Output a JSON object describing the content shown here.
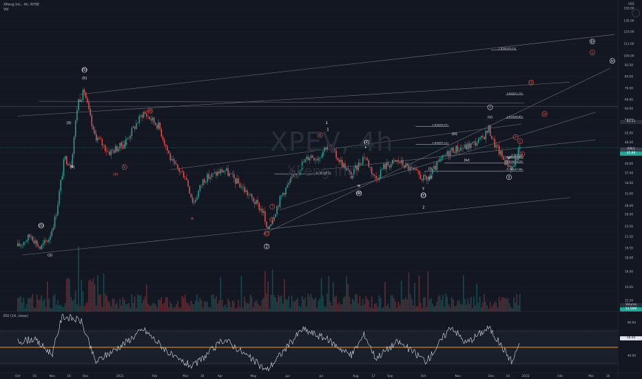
{
  "header": {
    "symbol_line": "XPeng Inc., 4h, NYSE",
    "volume_label": "Vol",
    "currency": "USD"
  },
  "watermark": {
    "symbol": "XPEV, 4h",
    "name": "XPeng Inc."
  },
  "rsi": {
    "label": "RSI (14, close)",
    "ticks": [
      "80.00",
      "60.00",
      "40.00"
    ],
    "last_value": "58.40",
    "upper_band": 70,
    "lower_band": 30,
    "mid_line": 50
  },
  "price_axis": {
    "ticks": [
      "150.00",
      "135.00",
      "123.00",
      "111.00",
      "100.00",
      "92.50",
      "84.00",
      "76.00",
      "69.00",
      "64.00",
      "58.00",
      "52.00",
      "48.00",
      "44.00",
      "40.00",
      "37.00",
      "34.00",
      "31.00",
      "28.00",
      "26.00",
      "23.50",
      "21.50",
      "19.50",
      "18.00",
      "16.00",
      "14.00",
      "12.50"
    ],
    "last_price": "45.88",
    "last_price_label": "XPEV",
    "level_tag": "65.11",
    "volume_tag": "Volume",
    "volume_value": "14.59M"
  },
  "time_axis": {
    "labels": [
      "Oct",
      "16",
      "Nov",
      "16",
      "Dec",
      "2021",
      "Feb",
      "Mar",
      "16",
      "Apr",
      "May",
      "Jun",
      "Jul",
      "Aug",
      "17",
      "Sep",
      "Oct",
      "Nov",
      "Dec",
      "16",
      "2022",
      "Feb",
      "Mar",
      "16"
    ]
  },
  "colors": {
    "up": "#26a69a",
    "down": "#ef5350",
    "wave": "#ffffff",
    "wave_red": "#f05a4a",
    "rsi_line": "#e0e3eb",
    "rsi_mid": "#ff9800",
    "channel": "#787b86"
  },
  "fib_labels": [
    "1.618(105.22)",
    "2.618(71.75)",
    "1.618(58.85)",
    "2.618(54.97)",
    "1.618(47.11)",
    "0.382(41.85)",
    "0.5(42.5)",
    "0.618(40.19)",
    "0.786(37.58)",
    "0.382(26.6)"
  ],
  "wave_labels": [
    "(1)",
    "(2)",
    "(3)",
    "(4)",
    "(5)",
    "1",
    "(5)",
    "2",
    "1",
    "(X)",
    "(W)",
    "(Y)",
    "2",
    "(i)",
    "(ii)",
    "(iii)",
    "(iv)",
    "(v)",
    "i",
    "ii",
    "iii",
    "iv",
    "v",
    "(A)",
    "(B)",
    "(C)",
    "A",
    "B",
    "C",
    "a",
    "b",
    "c",
    "w",
    "x",
    "y",
    "iii",
    "i",
    "ii",
    "iv",
    "v",
    "i"
  ],
  "chart_data": {
    "type": "candlestick",
    "title": "XPeng Inc., 4h, NYSE",
    "instrument": "XPEV",
    "timeframe": "4h",
    "xlabel": "",
    "ylabel": "USD",
    "ylim": [
      12.5,
      150
    ],
    "log_scale": true,
    "x": [
      "Oct 2020",
      "Nov 2020",
      "Dec 2020",
      "Jan 2021",
      "Feb 2021",
      "Mar 2021",
      "Apr 2021",
      "May 2021",
      "Jun 2021",
      "Jul 2021",
      "Aug 2021",
      "Sep 2021",
      "Oct 2021",
      "Nov 2021",
      "Dec 2021",
      "Jan 2022"
    ],
    "series": [
      {
        "name": "XPEV",
        "anchors": [
          {
            "t": "2020-10-01",
            "p": 19.8
          },
          {
            "t": "2020-10-13",
            "p": 21.8
          },
          {
            "t": "2020-10-21",
            "p": 19.5
          },
          {
            "t": "2020-10-29",
            "p": 21.2
          },
          {
            "t": "2020-11-04",
            "p": 25.5
          },
          {
            "t": "2020-11-12",
            "p": 42
          },
          {
            "t": "2020-11-18",
            "p": 40
          },
          {
            "t": "2020-11-24",
            "p": 68
          },
          {
            "t": "2020-11-30",
            "p": 74
          },
          {
            "t": "2020-12-08",
            "p": 52
          },
          {
            "t": "2020-12-22",
            "p": 44
          },
          {
            "t": "2021-01-04",
            "p": 47
          },
          {
            "t": "2021-01-22",
            "p": 62
          },
          {
            "t": "2021-02-05",
            "p": 55
          },
          {
            "t": "2021-02-17",
            "p": 40
          },
          {
            "t": "2021-03-01",
            "p": 36
          },
          {
            "t": "2021-03-08",
            "p": 28.5
          },
          {
            "t": "2021-03-17",
            "p": 35
          },
          {
            "t": "2021-04-05",
            "p": 38
          },
          {
            "t": "2021-04-20",
            "p": 33
          },
          {
            "t": "2021-05-10",
            "p": 26.5
          },
          {
            "t": "2021-05-13",
            "p": 22.5
          },
          {
            "t": "2021-05-27",
            "p": 31
          },
          {
            "t": "2021-06-14",
            "p": 40
          },
          {
            "t": "2021-06-21",
            "p": 43
          },
          {
            "t": "2021-06-28",
            "p": 42
          },
          {
            "t": "2021-07-06",
            "p": 47
          },
          {
            "t": "2021-07-20",
            "p": 40
          },
          {
            "t": "2021-07-28",
            "p": 36
          },
          {
            "t": "2021-08-09",
            "p": 43
          },
          {
            "t": "2021-08-19",
            "p": 35
          },
          {
            "t": "2021-08-26",
            "p": 39
          },
          {
            "t": "2021-09-08",
            "p": 41
          },
          {
            "t": "2021-09-20",
            "p": 38
          },
          {
            "t": "2021-10-04",
            "p": 34.5
          },
          {
            "t": "2021-10-14",
            "p": 40
          },
          {
            "t": "2021-10-26",
            "p": 45
          },
          {
            "t": "2021-11-08",
            "p": 46
          },
          {
            "t": "2021-11-22",
            "p": 49
          },
          {
            "t": "2021-11-29",
            "p": 54
          },
          {
            "t": "2021-12-03",
            "p": 48
          },
          {
            "t": "2021-12-13",
            "p": 41
          },
          {
            "t": "2021-12-20",
            "p": 38.5
          },
          {
            "t": "2021-12-27",
            "p": 45.88
          }
        ]
      }
    ],
    "rsi_series": {
      "name": "RSI (14, close)",
      "range": [
        20,
        90
      ],
      "anchors": [
        {
          "t": "2020-10-01",
          "v": 57
        },
        {
          "t": "2020-10-15",
          "v": 60
        },
        {
          "t": "2020-11-01",
          "v": 42
        },
        {
          "t": "2020-11-10",
          "v": 88
        },
        {
          "t": "2020-11-27",
          "v": 82
        },
        {
          "t": "2020-12-10",
          "v": 32
        },
        {
          "t": "2021-01-05",
          "v": 55
        },
        {
          "t": "2021-01-22",
          "v": 72
        },
        {
          "t": "2021-02-20",
          "v": 36
        },
        {
          "t": "2021-03-08",
          "v": 27
        },
        {
          "t": "2021-04-05",
          "v": 60
        },
        {
          "t": "2021-05-13",
          "v": 22
        },
        {
          "t": "2021-06-14",
          "v": 72
        },
        {
          "t": "2021-07-06",
          "v": 60
        },
        {
          "t": "2021-07-28",
          "v": 40
        },
        {
          "t": "2021-08-09",
          "v": 66
        },
        {
          "t": "2021-08-19",
          "v": 37
        },
        {
          "t": "2021-09-08",
          "v": 57
        },
        {
          "t": "2021-10-04",
          "v": 33
        },
        {
          "t": "2021-10-26",
          "v": 76
        },
        {
          "t": "2021-11-08",
          "v": 55
        },
        {
          "t": "2021-11-29",
          "v": 74
        },
        {
          "t": "2021-12-20",
          "v": 32
        },
        {
          "t": "2021-12-27",
          "v": 58.4
        }
      ]
    }
  }
}
